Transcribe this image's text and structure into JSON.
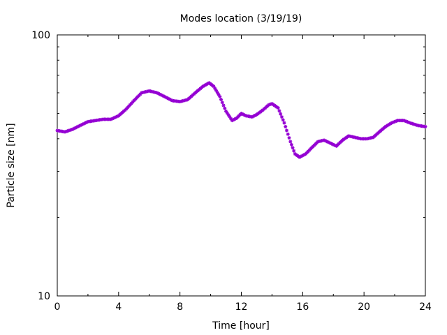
{
  "chart_data": {
    "type": "scatter",
    "title": "Modes location (3/19/19)",
    "xlabel": "Time [hour]",
    "ylabel": "Particle size [nm]",
    "xlim": [
      0,
      24
    ],
    "ylim": [
      10,
      100
    ],
    "yscale": "log",
    "grid": false,
    "x_ticks": [
      0,
      4,
      8,
      12,
      16,
      20,
      24
    ],
    "x_tick_labels": [
      "0",
      "4",
      "8",
      "12",
      "16",
      "20",
      "24"
    ],
    "y_ticks": [
      10,
      100
    ],
    "y_tick_labels": [
      "10",
      "100"
    ],
    "series": [
      {
        "color": "#9400d3",
        "marker": "star",
        "x": [
          0.0,
          0.5,
          1.0,
          1.5,
          2.0,
          2.5,
          3.0,
          3.5,
          4.0,
          4.5,
          5.0,
          5.5,
          6.0,
          6.5,
          7.0,
          7.5,
          8.0,
          8.5,
          9.0,
          9.5,
          9.9,
          10.2,
          10.6,
          11.0,
          11.4,
          11.7,
          12.0,
          12.3,
          12.7,
          13.0,
          13.4,
          13.8,
          14.0,
          14.4,
          14.8,
          15.2,
          15.5,
          15.8,
          16.2,
          16.6,
          17.0,
          17.4,
          17.8,
          18.2,
          18.6,
          19.0,
          19.4,
          19.8,
          20.2,
          20.6,
          21.0,
          21.4,
          21.8,
          22.2,
          22.6,
          23.0,
          23.5,
          24.0
        ],
        "y": [
          43.0,
          42.5,
          43.5,
          45.0,
          46.5,
          47.0,
          47.5,
          47.5,
          49.0,
          52.0,
          56.0,
          60.0,
          61.0,
          60.0,
          58.0,
          56.0,
          55.5,
          56.5,
          60.0,
          63.5,
          65.5,
          63.5,
          58.0,
          51.0,
          47.0,
          48.0,
          50.0,
          49.0,
          48.5,
          49.5,
          51.5,
          54.0,
          54.5,
          52.5,
          46.0,
          39.0,
          35.0,
          34.0,
          35.0,
          37.0,
          39.0,
          39.5,
          38.5,
          37.5,
          39.5,
          41.0,
          40.5,
          40.0,
          40.0,
          40.5,
          42.5,
          44.5,
          46.0,
          47.0,
          47.0,
          46.0,
          45.0,
          44.5
        ]
      }
    ]
  }
}
